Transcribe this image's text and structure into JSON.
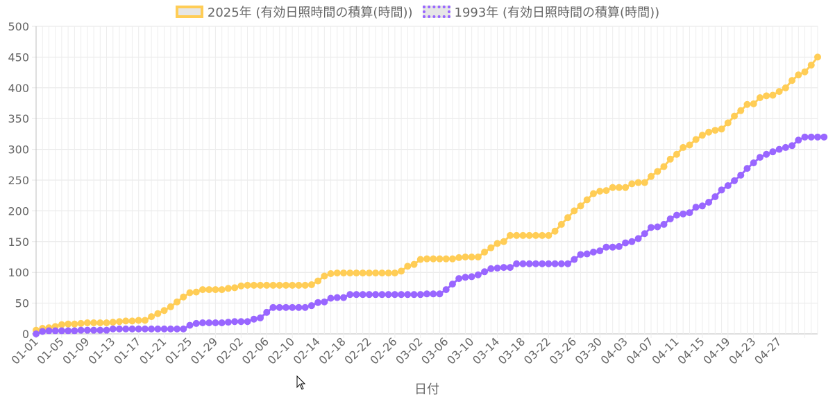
{
  "chart_data": {
    "type": "line",
    "xlabel": "日付",
    "ylabel": "",
    "ylim": [
      0,
      500
    ],
    "yticks": [
      0,
      50,
      100,
      150,
      200,
      250,
      300,
      350,
      400,
      450,
      500
    ],
    "grid": true,
    "legend_position": "top",
    "x_tick_labels": [
      "01-01",
      "01-05",
      "01-09",
      "01-13",
      "01-17",
      "01-21",
      "01-25",
      "01-29",
      "02-02",
      "02-06",
      "02-10",
      "02-14",
      "02-18",
      "02-22",
      "02-26",
      "03-02",
      "03-06",
      "03-10",
      "03-14",
      "03-18",
      "03-22",
      "03-26",
      "03-30",
      "04-03",
      "04-07",
      "04-11",
      "04-15",
      "04-19",
      "04-23",
      "04-27"
    ],
    "series": [
      {
        "name": "2025年 (有効日照時間の積算(時間))",
        "color": "#ffcd56",
        "values": [
          6,
          9,
          10,
          12,
          15,
          16,
          16,
          17,
          18,
          18,
          18,
          18,
          19,
          20,
          21,
          21,
          22,
          22,
          28,
          33,
          38,
          44,
          52,
          60,
          67,
          68,
          72,
          72,
          72,
          72,
          74,
          75,
          78,
          79,
          79,
          79,
          79,
          79,
          79,
          79,
          79,
          79,
          79,
          80,
          86,
          94,
          98,
          99,
          99,
          99,
          99,
          99,
          99,
          99,
          99,
          99,
          99,
          102,
          110,
          113,
          121,
          122,
          122,
          122,
          122,
          122,
          124,
          125,
          125,
          125,
          133,
          140,
          147,
          150,
          160,
          160,
          160,
          160,
          160,
          160,
          160,
          167,
          178,
          189,
          200,
          208,
          218,
          228,
          232,
          233,
          238,
          238,
          238,
          244,
          246,
          246,
          256,
          264,
          272,
          284,
          292,
          303,
          307,
          316,
          323,
          328,
          331,
          333,
          343,
          354,
          363,
          373,
          374,
          384,
          387,
          388,
          394,
          400,
          412,
          421,
          426,
          437,
          450
        ]
      },
      {
        "name": "1993年 (有効日照時間の積算(時間))",
        "color": "#9966ff",
        "values": [
          0,
          4,
          5,
          5,
          5,
          5,
          5,
          6,
          6,
          6,
          6,
          6,
          8,
          8,
          8,
          8,
          8,
          8,
          8,
          8,
          8,
          8,
          8,
          8,
          14,
          17,
          18,
          18,
          18,
          18,
          19,
          20,
          20,
          20,
          24,
          26,
          35,
          43,
          43,
          43,
          43,
          43,
          43,
          46,
          51,
          52,
          58,
          59,
          59,
          64,
          64,
          64,
          64,
          64,
          64,
          64,
          64,
          64,
          64,
          64,
          64,
          65,
          65,
          65,
          72,
          81,
          90,
          92,
          93,
          96,
          101,
          106,
          107,
          108,
          108,
          114,
          114,
          114,
          114,
          114,
          114,
          114,
          114,
          114,
          121,
          129,
          130,
          133,
          135,
          141,
          141,
          142,
          148,
          150,
          155,
          163,
          173,
          174,
          178,
          187,
          193,
          195,
          197,
          206,
          208,
          214,
          223,
          234,
          241,
          249,
          258,
          269,
          278,
          287,
          292,
          296,
          300,
          303,
          306,
          315,
          320,
          320,
          320,
          320
        ]
      }
    ]
  }
}
